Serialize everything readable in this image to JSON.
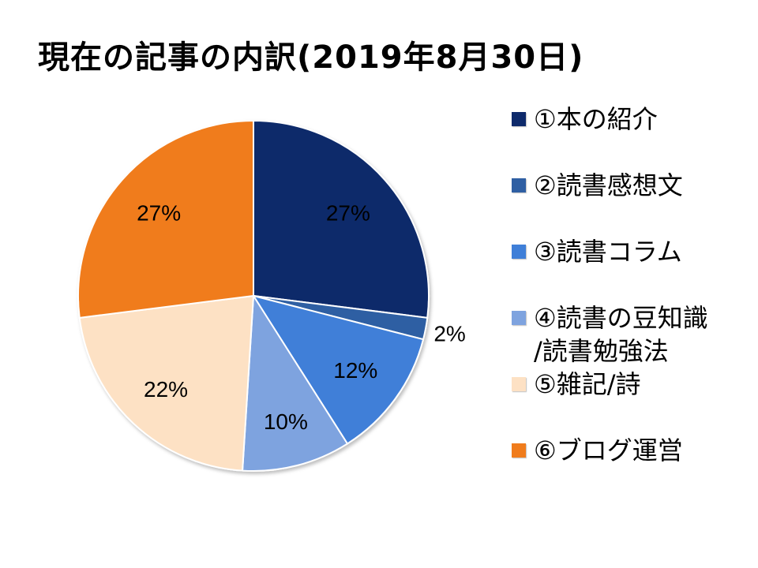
{
  "title": "現在の記事の内訳(2019年8月30日)",
  "chart_data": {
    "type": "pie",
    "title": "現在の記事の内訳(2019年8月30日)",
    "start_angle_deg": 0,
    "direction": "clockwise",
    "legend_position": "right",
    "slices": [
      {
        "label": "①本の紹介",
        "value": 27,
        "value_label": "27%",
        "color": "#0e2a6b"
      },
      {
        "label": "②読書感想文",
        "value": 2,
        "value_label": "2%",
        "color": "#2f5fa3"
      },
      {
        "label": "③読書コラム",
        "value": 12,
        "value_label": "12%",
        "color": "#3f7fd8"
      },
      {
        "label": "④読書の豆知識\n/読書勉強法",
        "value": 10,
        "value_label": "10%",
        "color": "#7ea3df"
      },
      {
        "label": "⑤雑記/詩",
        "value": 22,
        "value_label": "22%",
        "color": "#fde1c4"
      },
      {
        "label": "⑥ブログ運営",
        "value": 27,
        "value_label": "27%",
        "color": "#f07c1c"
      }
    ]
  }
}
